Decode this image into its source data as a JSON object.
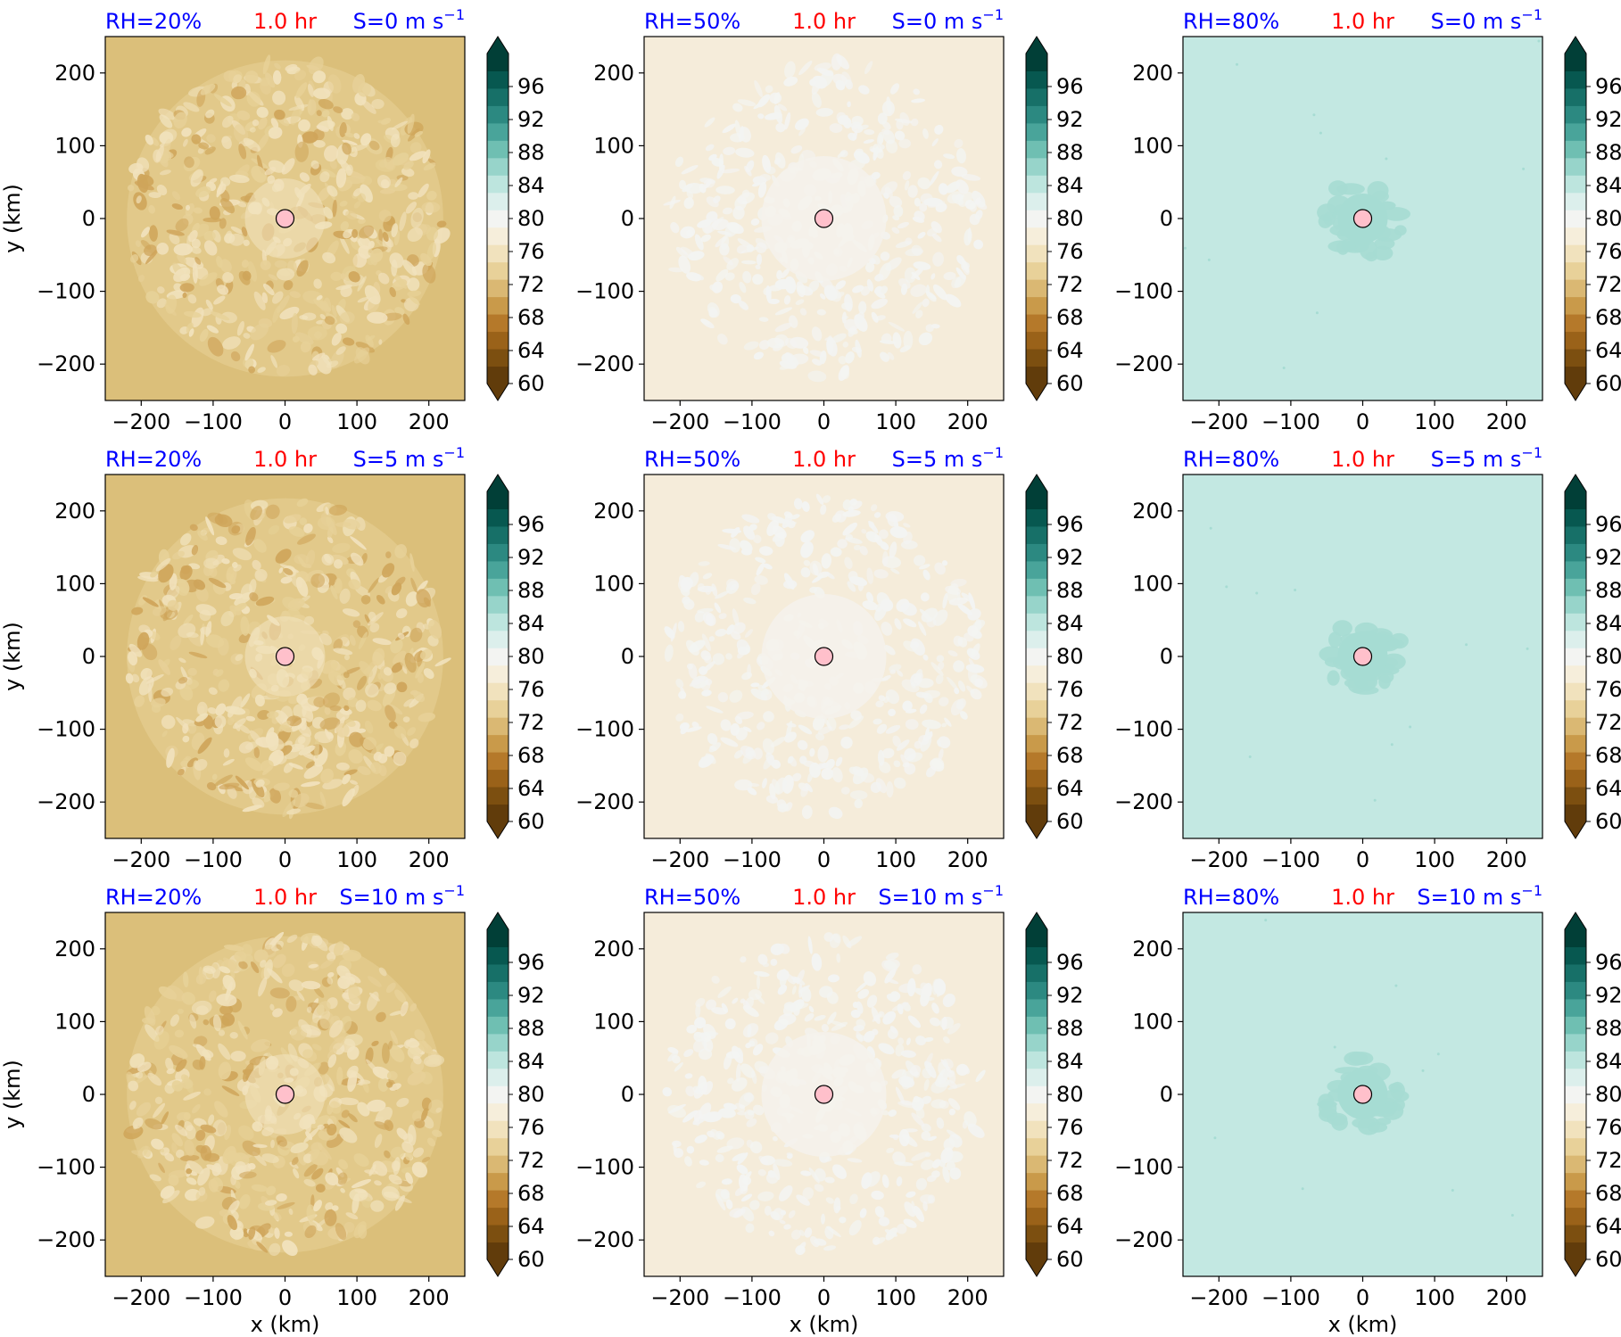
{
  "figure": {
    "rows": 3,
    "cols": 3
  },
  "colorbar": {
    "ticks": [
      "96",
      "92",
      "88",
      "84",
      "80",
      "76",
      "72",
      "68",
      "64",
      "60"
    ],
    "tick_values": [
      96,
      92,
      88,
      84,
      80,
      76,
      72,
      68,
      64,
      60
    ],
    "range": [
      60,
      100
    ],
    "colors": [
      "#613c0b",
      "#7c4f10",
      "#9a6219",
      "#b5792a",
      "#c99a4a",
      "#dab873",
      "#e8d199",
      "#f1e2bd",
      "#f6eedb",
      "#f3f4f2",
      "#dcefec",
      "#bde5de",
      "#97d4ca",
      "#6fbfb2",
      "#49a49a",
      "#2c8981",
      "#177068",
      "#075850",
      "#013f37"
    ]
  },
  "axes": {
    "xlabel": "x (km)",
    "ylabel": "y (km)",
    "xticks": [
      "−200",
      "−100",
      "0",
      "100",
      "200"
    ],
    "yticks": [
      "200",
      "100",
      "0",
      "−100",
      "−200"
    ],
    "tick_values": [
      -200,
      -100,
      0,
      100,
      200
    ],
    "xlim": [
      -250,
      250
    ],
    "ylim": [
      -250,
      250
    ]
  },
  "labels": {
    "time": "1.0 hr",
    "rh": [
      "RH=20%",
      "RH=50%",
      "RH=80%"
    ],
    "shear_prefix": [
      "S=0 m s",
      "S=5 m s",
      "S=10 m s"
    ],
    "shear_exp": "−1"
  },
  "chart_data": {
    "type": "heatmap",
    "description_of_field": "",
    "panels": [
      {
        "rh": "RH=20%",
        "shear": "S=0 m s⁻¹",
        "background_value": 71,
        "dominant_range": [
          68,
          76
        ],
        "center_marker": [
          0,
          0
        ]
      },
      {
        "rh": "RH=50%",
        "shear": "S=0 m s⁻¹",
        "background_value": 77,
        "dominant_range": [
          76,
          80
        ],
        "center_marker": [
          0,
          0
        ]
      },
      {
        "rh": "RH=80%",
        "shear": "S=0 m s⁻¹",
        "background_value": 84,
        "dominant_range": [
          84,
          86
        ],
        "center_marker": [
          0,
          0
        ]
      },
      {
        "rh": "RH=20%",
        "shear": "S=5 m s⁻¹",
        "background_value": 71,
        "dominant_range": [
          68,
          76
        ],
        "center_marker": [
          0,
          0
        ]
      },
      {
        "rh": "RH=50%",
        "shear": "S=5 m s⁻¹",
        "background_value": 77,
        "dominant_range": [
          76,
          80
        ],
        "center_marker": [
          0,
          0
        ]
      },
      {
        "rh": "RH=80%",
        "shear": "S=5 m s⁻¹",
        "background_value": 84,
        "dominant_range": [
          84,
          86
        ],
        "center_marker": [
          0,
          0
        ]
      },
      {
        "rh": "RH=20%",
        "shear": "S=10 m s⁻¹",
        "background_value": 71,
        "dominant_range": [
          68,
          76
        ],
        "center_marker": [
          0,
          0
        ]
      },
      {
        "rh": "RH=50%",
        "shear": "S=10 m s⁻¹",
        "background_value": 77,
        "dominant_range": [
          76,
          80
        ],
        "center_marker": [
          0,
          0
        ]
      },
      {
        "rh": "RH=80%",
        "shear": "S=10 m s⁻¹",
        "background_value": 84,
        "dominant_range": [
          84,
          86
        ],
        "center_marker": [
          0,
          0
        ]
      }
    ],
    "panel_fill_colors": {
      "RH=20%": {
        "base": "#dbbf7a",
        "mid": "#e7d198",
        "light": "#f1e2bd",
        "dark": "#cfa55a"
      },
      "RH=50%": {
        "base": "#f5ecda",
        "mid": "#f4f2ec",
        "light": "#f3f4f2"
      },
      "RH=80%": {
        "base": "#c3e8e2",
        "mid": "#a6dcd3",
        "light": "#cfece7"
      }
    },
    "marker_color": "#ffc0cb",
    "title_colors": {
      "rh": "#0000ff",
      "time": "#ff0000",
      "shear": "#0000ff"
    }
  }
}
